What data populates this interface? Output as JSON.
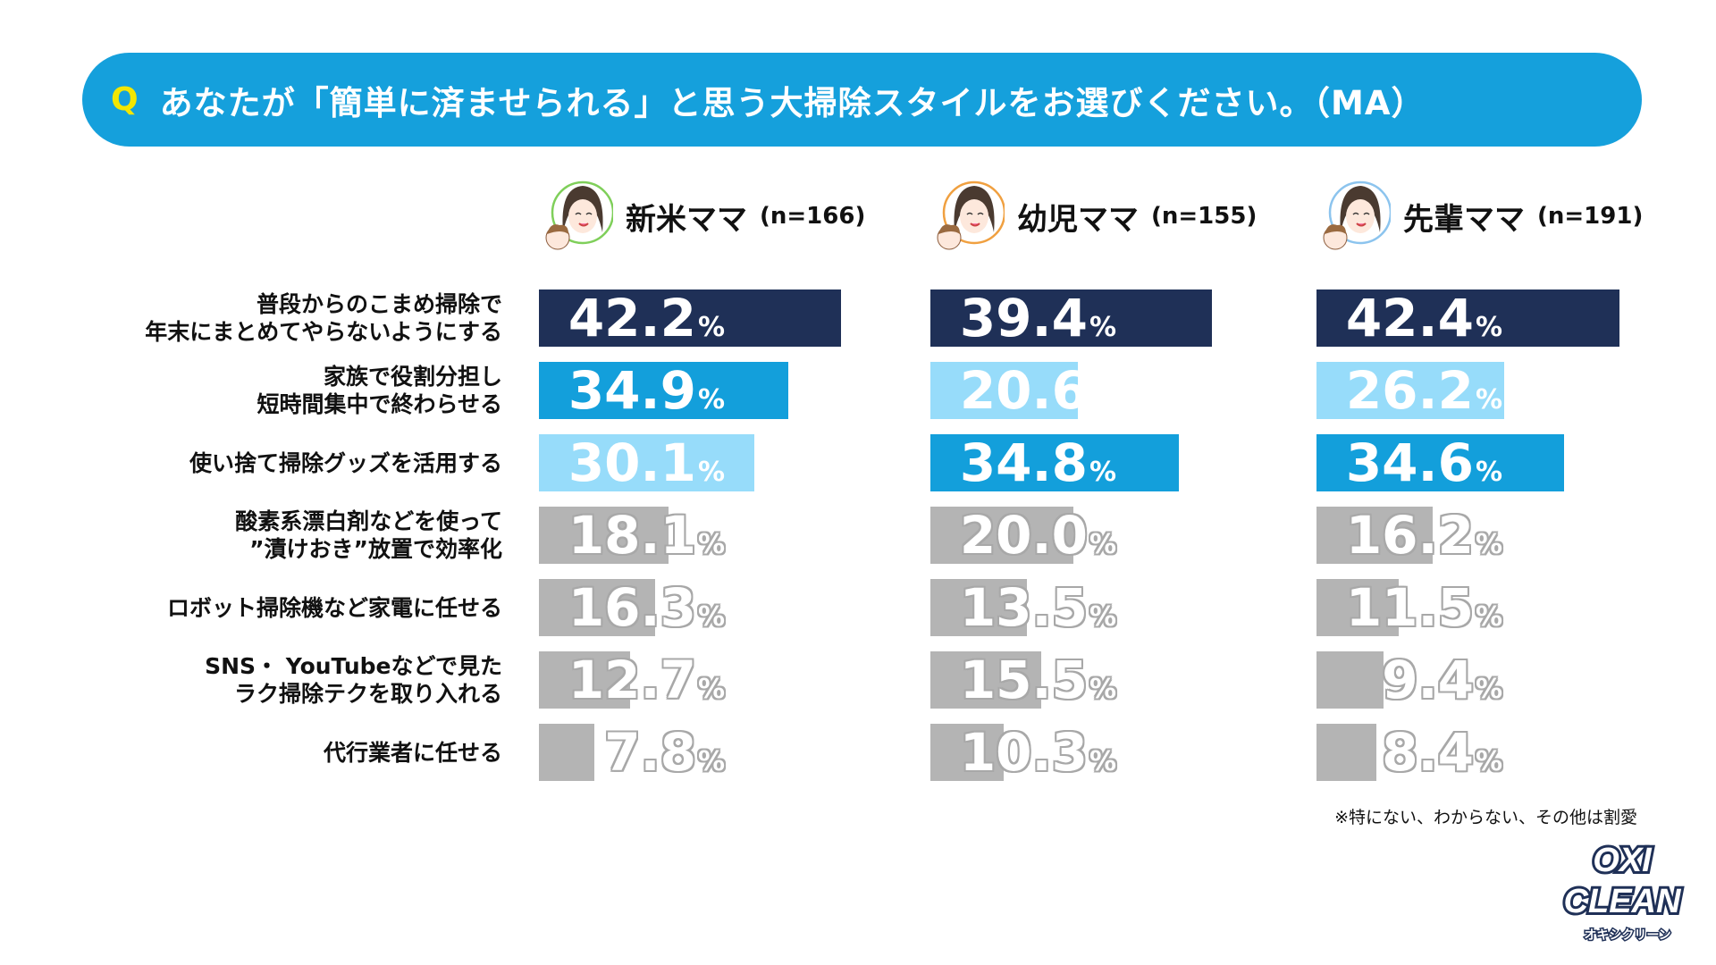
{
  "question": {
    "marker": "Q",
    "text": "あなたが「簡単に済ませられる」と思う大掃除スタイルをお選びください。（MA）"
  },
  "chart_data": {
    "type": "bar",
    "orientation": "horizontal",
    "unit": "%",
    "categories": [
      [
        "普段からのこまめ掃除で",
        "年末にまとめてやらないようにする"
      ],
      [
        "家族で役割分担し",
        "短時間集中で終わらせる"
      ],
      [
        "使い捨て掃除グッズを活用する"
      ],
      [
        "酸素系漂白剤などを使って",
        "”漬けおき”放置で効率化"
      ],
      [
        "ロボット掃除機など家電に任せる"
      ],
      [
        "SNS・ YouTubeなどで見た",
        "ラク掃除テクを取り入れる"
      ],
      [
        "代行業者に任せる"
      ]
    ],
    "series": [
      {
        "name": "新米ママ",
        "n": "(n=166)",
        "ring": "#7fcf5a",
        "values": [
          42.2,
          34.9,
          30.1,
          18.1,
          16.3,
          12.7,
          7.8
        ]
      },
      {
        "name": "幼児ママ",
        "n": "(n=155)",
        "ring": "#f0a040",
        "values": [
          39.4,
          20.6,
          34.8,
          20.0,
          13.5,
          15.5,
          10.3
        ]
      },
      {
        "name": "先輩ママ",
        "n": "(n=191)",
        "ring": "#8cc4ee",
        "values": [
          42.4,
          26.2,
          34.6,
          16.2,
          11.5,
          9.4,
          8.4
        ]
      }
    ],
    "rank_colors": {
      "first": "#1f3057",
      "second": "#139fdb",
      "third": "#97dcfa",
      "other": "#b4b4b4"
    }
  },
  "footnote": "※特にない、わからない、その他は割愛",
  "logo": {
    "text": "OXI CLEAN",
    "sub": "オキシクリーン"
  }
}
